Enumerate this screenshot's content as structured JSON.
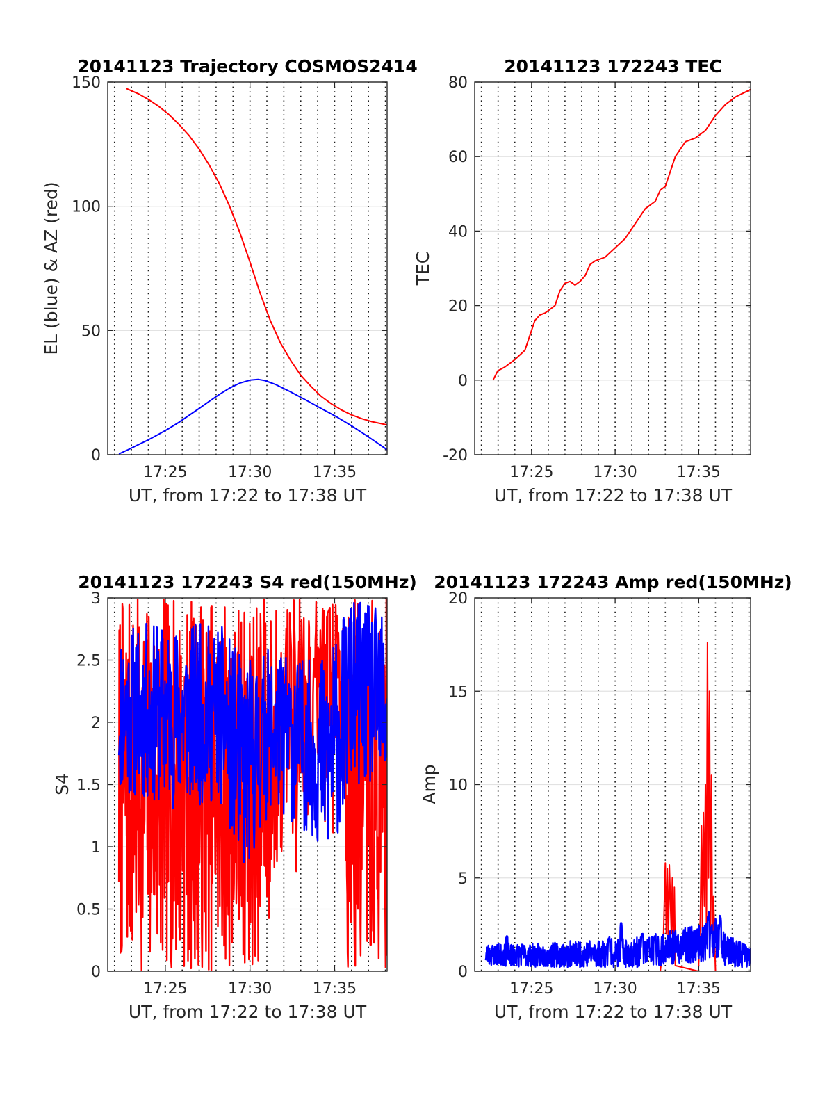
{
  "chart_data": [
    {
      "type": "line",
      "title": "20141123 Trajectory COSMOS2414",
      "xlabel": "UT, from 17:22 to 17:38 UT",
      "ylabel": "EL (blue) & AZ (red)",
      "xlim": [
        17.36,
        17.635
      ],
      "ylim": [
        0,
        150
      ],
      "xticks": [
        {
          "x": 17.4167,
          "label": "17:25"
        },
        {
          "x": 17.5,
          "label": "17:30"
        },
        {
          "x": 17.5833,
          "label": "17:35"
        }
      ],
      "yticks": [
        {
          "y": 0,
          "label": "0"
        },
        {
          "y": 50,
          "label": "50"
        },
        {
          "y": 100,
          "label": "100"
        },
        {
          "y": 150,
          "label": "150"
        }
      ],
      "grid": true,
      "series": [
        {
          "color": "#ff0000",
          "kind": "line",
          "points": [
            [
              17.3783,
              147.4
            ],
            [
              17.39,
              145.3
            ],
            [
              17.4,
              143.0
            ],
            [
              17.41,
              140.3
            ],
            [
              17.42,
              137.0
            ],
            [
              17.43,
              133.0
            ],
            [
              17.44,
              128.5
            ],
            [
              17.45,
              123.0
            ],
            [
              17.46,
              116.5
            ],
            [
              17.47,
              109.0
            ],
            [
              17.48,
              100.0
            ],
            [
              17.49,
              89.5
            ],
            [
              17.5,
              77.5
            ],
            [
              17.51,
              65.0
            ],
            [
              17.52,
              54.0
            ],
            [
              17.53,
              45.0
            ],
            [
              17.54,
              38.0
            ],
            [
              17.55,
              32.0
            ],
            [
              17.56,
              27.5
            ],
            [
              17.57,
              23.5
            ],
            [
              17.58,
              20.5
            ],
            [
              17.59,
              18.0
            ],
            [
              17.6,
              16.0
            ],
            [
              17.61,
              14.5
            ],
            [
              17.62,
              13.3
            ],
            [
              17.635,
              12.0
            ]
          ]
        },
        {
          "color": "#0000ff",
          "kind": "line",
          "points": [
            [
              17.371,
              0.3
            ],
            [
              17.38,
              2.0
            ],
            [
              17.39,
              4.0
            ],
            [
              17.4,
              6.0
            ],
            [
              17.41,
              8.2
            ],
            [
              17.42,
              10.5
            ],
            [
              17.43,
              13.0
            ],
            [
              17.44,
              15.8
            ],
            [
              17.45,
              18.6
            ],
            [
              17.46,
              21.5
            ],
            [
              17.47,
              24.3
            ],
            [
              17.48,
              26.8
            ],
            [
              17.49,
              28.8
            ],
            [
              17.5,
              30.0
            ],
            [
              17.508,
              30.3
            ],
            [
              17.515,
              29.8
            ],
            [
              17.525,
              28.3
            ],
            [
              17.54,
              25.3
            ],
            [
              17.555,
              22.0
            ],
            [
              17.57,
              18.6
            ],
            [
              17.585,
              15.3
            ],
            [
              17.6,
              11.6
            ],
            [
              17.615,
              7.6
            ],
            [
              17.625,
              4.8
            ],
            [
              17.635,
              2.0
            ]
          ]
        }
      ]
    },
    {
      "type": "line",
      "title": "20141123 172243 TEC",
      "xlabel": "UT, from 17:22 to 17:38 UT",
      "ylabel": "TEC",
      "xlim": [
        17.36,
        17.635
      ],
      "ylim": [
        -20,
        80
      ],
      "xticks": [
        {
          "x": 17.4167,
          "label": "17:25"
        },
        {
          "x": 17.5,
          "label": "17:30"
        },
        {
          "x": 17.5833,
          "label": "17:35"
        }
      ],
      "yticks": [
        {
          "y": -20,
          "label": "-20"
        },
        {
          "y": 0,
          "label": "0"
        },
        {
          "y": 20,
          "label": "20"
        },
        {
          "y": 40,
          "label": "40"
        },
        {
          "y": 60,
          "label": "60"
        },
        {
          "y": 80,
          "label": "80"
        }
      ],
      "grid": true,
      "series": [
        {
          "color": "#ff0000",
          "kind": "line",
          "points": [
            [
              17.3783,
              0
            ],
            [
              17.383,
              2.5
            ],
            [
              17.39,
              3.5
            ],
            [
              17.4,
              5.5
            ],
            [
              17.41,
              8.0
            ],
            [
              17.415,
              12.0
            ],
            [
              17.42,
              16.0
            ],
            [
              17.425,
              17.5
            ],
            [
              17.43,
              18.0
            ],
            [
              17.435,
              19.0
            ],
            [
              17.44,
              20.0
            ],
            [
              17.445,
              24.0
            ],
            [
              17.45,
              26.0
            ],
            [
              17.455,
              26.5
            ],
            [
              17.46,
              25.5
            ],
            [
              17.465,
              26.5
            ],
            [
              17.47,
              28.0
            ],
            [
              17.475,
              31.0
            ],
            [
              17.48,
              32.0
            ],
            [
              17.49,
              33.0
            ],
            [
              17.5,
              35.5
            ],
            [
              17.51,
              38.0
            ],
            [
              17.52,
              42.0
            ],
            [
              17.53,
              46.0
            ],
            [
              17.54,
              48.0
            ],
            [
              17.545,
              51.0
            ],
            [
              17.55,
              52.0
            ],
            [
              17.555,
              56.0
            ],
            [
              17.56,
              60.0
            ],
            [
              17.57,
              64.0
            ],
            [
              17.58,
              65.0
            ],
            [
              17.59,
              67.0
            ],
            [
              17.6,
              71.0
            ],
            [
              17.61,
              74.0
            ],
            [
              17.62,
              76.0
            ],
            [
              17.635,
              78.0
            ]
          ]
        }
      ]
    },
    {
      "type": "line",
      "title": "20141123 172243 S4 red(150MHz)",
      "xlabel": "UT, from 17:22 to 17:38 UT",
      "ylabel": "S4",
      "xlim": [
        17.36,
        17.635
      ],
      "ylim": [
        0,
        3
      ],
      "xticks": [
        {
          "x": 17.4167,
          "label": "17:25"
        },
        {
          "x": 17.5,
          "label": "17:30"
        },
        {
          "x": 17.5833,
          "label": "17:35"
        }
      ],
      "yticks": [
        {
          "y": 0,
          "label": "0"
        },
        {
          "y": 0.5,
          "label": "0.5"
        },
        {
          "y": 1,
          "label": "1"
        },
        {
          "y": 1.5,
          "label": "1.5"
        },
        {
          "y": 2,
          "label": "2"
        },
        {
          "y": 2.5,
          "label": "2.5"
        },
        {
          "y": 3,
          "label": "3"
        }
      ],
      "grid": true,
      "series": [
        {
          "color": "#ff0000",
          "kind": "noise",
          "range": [
            17.371,
            17.635
          ],
          "gap": [
            17.532,
            17.594
          ],
          "profile": [
            [
              17.371,
              0,
              3
            ],
            [
              17.432,
              0,
              3
            ],
            [
              17.478,
              0,
              3
            ],
            [
              17.508,
              0,
              3
            ],
            [
              17.532,
              0.8,
              3
            ],
            [
              17.594,
              0,
              3
            ],
            [
              17.62,
              0,
              3
            ],
            [
              17.635,
              0,
              3
            ]
          ],
          "count": 700,
          "seed": 7
        },
        {
          "color": "#0000ff",
          "kind": "noise",
          "range": [
            17.371,
            17.635
          ],
          "profile": [
            [
              17.371,
              1.4,
              2.8
            ],
            [
              17.43,
              1.3,
              2.8
            ],
            [
              17.47,
              1.35,
              2.8
            ],
            [
              17.495,
              0.75,
              2.5
            ],
            [
              17.52,
              1.3,
              2.6
            ],
            [
              17.56,
              1.1,
              2.5
            ],
            [
              17.578,
              0.8,
              2.6
            ],
            [
              17.6,
              1.5,
              3
            ],
            [
              17.635,
              1.4,
              2.9
            ]
          ],
          "count": 600,
          "seed": 11
        }
      ]
    },
    {
      "type": "line",
      "title": "20141123 172243 Amp red(150MHz)",
      "xlabel": "UT, from 17:22 to 17:38 UT",
      "ylabel": "Amp",
      "xlim": [
        17.36,
        17.635
      ],
      "ylim": [
        0,
        20
      ],
      "xticks": [
        {
          "x": 17.4167,
          "label": "17:25"
        },
        {
          "x": 17.5,
          "label": "17:30"
        },
        {
          "x": 17.5833,
          "label": "17:35"
        }
      ],
      "yticks": [
        {
          "y": 0,
          "label": "0"
        },
        {
          "y": 5,
          "label": "5"
        },
        {
          "y": 10,
          "label": "10"
        },
        {
          "y": 15,
          "label": "15"
        },
        {
          "y": 20,
          "label": "20"
        }
      ],
      "grid": true,
      "series": [
        {
          "color": "#ff0000",
          "kind": "line",
          "points": [
            [
              17.371,
              0
            ],
            [
              17.545,
              0
            ],
            [
              17.548,
              1.5
            ],
            [
              17.55,
              5.8
            ],
            [
              17.551,
              2.0
            ],
            [
              17.552,
              5.5
            ],
            [
              17.553,
              1.2
            ],
            [
              17.554,
              5.7
            ],
            [
              17.556,
              2.0
            ],
            [
              17.557,
              5.0
            ],
            [
              17.558,
              0.5
            ],
            [
              17.559,
              4.5
            ],
            [
              17.56,
              0.3
            ],
            [
              17.583,
              0
            ],
            [
              17.585,
              3.0
            ],
            [
              17.586,
              7.8
            ],
            [
              17.587,
              2.0
            ],
            [
              17.588,
              8.5
            ],
            [
              17.589,
              3.5
            ],
            [
              17.59,
              10.0
            ],
            [
              17.591,
              2.5
            ],
            [
              17.592,
              17.6
            ],
            [
              17.593,
              5.0
            ],
            [
              17.594,
              15.0
            ],
            [
              17.595,
              2.0
            ],
            [
              17.596,
              10.5
            ],
            [
              17.597,
              1.0
            ],
            [
              17.598,
              4.0
            ],
            [
              17.6,
              0
            ],
            [
              17.635,
              0
            ]
          ]
        },
        {
          "color": "#0000ff",
          "kind": "noise",
          "range": [
            17.371,
            17.635
          ],
          "profile": [
            [
              17.371,
              0.3,
              1.5
            ],
            [
              17.43,
              0.2,
              1.5
            ],
            [
              17.47,
              0.2,
              1.7
            ],
            [
              17.52,
              0.2,
              1.8
            ],
            [
              17.585,
              0.5,
              2.5
            ],
            [
              17.6,
              0.8,
              3.0
            ],
            [
              17.61,
              0.2,
              2.0
            ],
            [
              17.635,
              0.2,
              1.4
            ]
          ],
          "spikes": [
            [
              17.392,
              2.0
            ],
            [
              17.494,
              1.9
            ],
            [
              17.506,
              2.6
            ],
            [
              17.527,
              2.1
            ],
            [
              17.539,
              1.9
            ],
            [
              17.593,
              3.2
            ],
            [
              17.605,
              3.0
            ]
          ],
          "count": 900,
          "seed": 23
        }
      ]
    }
  ]
}
